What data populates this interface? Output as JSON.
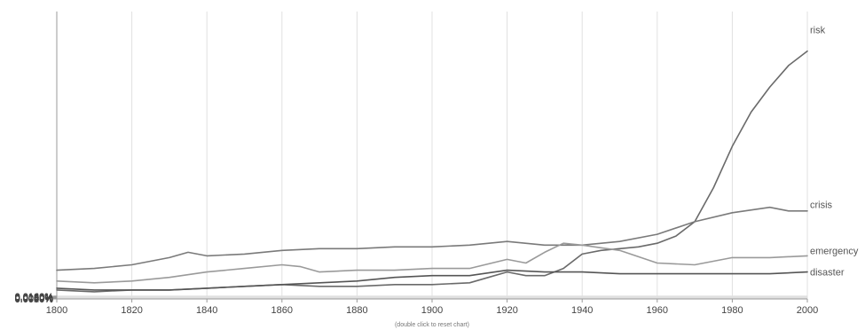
{
  "chart_data": {
    "type": "line",
    "title": "",
    "xlabel": "",
    "ylabel": "",
    "xlim": [
      1800,
      2000
    ],
    "ylim": [
      0,
      0.016
    ],
    "x_ticks": [
      "1800",
      "1820",
      "1840",
      "1860",
      "1880",
      "1900",
      "1920",
      "1940",
      "1960",
      "1980",
      "2000"
    ],
    "y_ticks": [
      "0.0000%",
      "0.0020%",
      "0.0040%",
      "0.0060%",
      "0.0080%",
      "0.0100%",
      "0.0120%",
      "0.0140%",
      "0.0160%"
    ],
    "grid": true,
    "legend": "none",
    "footer_note": "(double click to reset chart)",
    "series": [
      {
        "name": "risk",
        "color": "#6a6a6a",
        "x": [
          1800,
          1810,
          1820,
          1830,
          1840,
          1850,
          1860,
          1870,
          1880,
          1890,
          1900,
          1910,
          1915,
          1920,
          1925,
          1930,
          1935,
          1940,
          1945,
          1950,
          1955,
          1960,
          1965,
          1970,
          1975,
          1980,
          1985,
          1990,
          1995,
          2000
        ],
        "y": [
          0.0005,
          0.0004,
          0.0005,
          0.0005,
          0.0006,
          0.0007,
          0.0008,
          0.0007,
          0.0007,
          0.0008,
          0.0008,
          0.0009,
          0.0012,
          0.0015,
          0.0013,
          0.0013,
          0.0017,
          0.0025,
          0.0027,
          0.0028,
          0.0029,
          0.0031,
          0.0035,
          0.0043,
          0.0062,
          0.0085,
          0.0104,
          0.0118,
          0.013,
          0.0138
        ]
      },
      {
        "name": "crisis",
        "color": "#7a7a7a",
        "x": [
          1800,
          1810,
          1820,
          1830,
          1835,
          1840,
          1850,
          1860,
          1870,
          1880,
          1890,
          1900,
          1910,
          1920,
          1930,
          1940,
          1950,
          1960,
          1970,
          1980,
          1990,
          1995,
          2000
        ],
        "y": [
          0.0016,
          0.0017,
          0.0019,
          0.0023,
          0.0026,
          0.0024,
          0.0025,
          0.0027,
          0.0028,
          0.0028,
          0.0029,
          0.0029,
          0.003,
          0.0032,
          0.003,
          0.003,
          0.0032,
          0.0036,
          0.0043,
          0.0048,
          0.0051,
          0.0049,
          0.0049
        ]
      },
      {
        "name": "emergency",
        "color": "#9a9a9a",
        "x": [
          1800,
          1810,
          1820,
          1830,
          1840,
          1850,
          1860,
          1865,
          1870,
          1880,
          1890,
          1900,
          1910,
          1920,
          1925,
          1930,
          1935,
          1940,
          1950,
          1960,
          1970,
          1980,
          1990,
          2000
        ],
        "y": [
          0.001,
          0.0009,
          0.001,
          0.0012,
          0.0015,
          0.0017,
          0.0019,
          0.0018,
          0.0015,
          0.0016,
          0.0016,
          0.0017,
          0.0017,
          0.0022,
          0.002,
          0.0026,
          0.0031,
          0.003,
          0.0027,
          0.002,
          0.0019,
          0.0023,
          0.0023,
          0.0024
        ]
      },
      {
        "name": "disaster",
        "color": "#555555",
        "x": [
          1800,
          1810,
          1820,
          1830,
          1840,
          1850,
          1860,
          1870,
          1880,
          1890,
          1900,
          1910,
          1920,
          1930,
          1940,
          1950,
          1960,
          1970,
          1980,
          1990,
          2000
        ],
        "y": [
          0.0006,
          0.0005,
          0.0005,
          0.0005,
          0.0006,
          0.0007,
          0.0008,
          0.0009,
          0.001,
          0.0012,
          0.0013,
          0.0013,
          0.0016,
          0.0015,
          0.0015,
          0.0014,
          0.0014,
          0.0014,
          0.0014,
          0.0014,
          0.0015
        ]
      }
    ]
  }
}
